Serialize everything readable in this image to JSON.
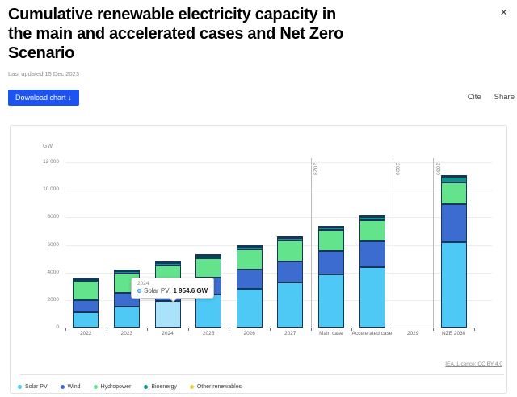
{
  "header": {
    "title_lines": [
      "Cumulative renewable electricity capacity in",
      "the main and accelerated cases and Net Zero",
      "Scenario"
    ],
    "last_updated": "Last updated 15 Dec 2023",
    "download_label": "Download chart ↓",
    "cite_label": "Cite",
    "share_label": "Share",
    "close_icon": "×"
  },
  "colors": {
    "accent_blue": "#1d53f2",
    "bar_border": "#16365c",
    "grid": "#ededed",
    "axis": "#555555"
  },
  "chart_data": {
    "type": "bar",
    "stacked": true,
    "title": "Cumulative renewable electricity capacity in the main and accelerated cases and Net Zero Scenario",
    "ylabel": "GW",
    "ylim": [
      0,
      12000
    ],
    "grid": true,
    "legend_position": "bottom",
    "yticks": [
      "0",
      "2000",
      "4000",
      "6000",
      "8000",
      "10 000",
      "12 000"
    ],
    "categories": [
      "2022",
      "2023",
      "2024",
      "2025",
      "2026",
      "2027",
      "Main case",
      "Accelerated case",
      "2029",
      "NZE 2030"
    ],
    "series": [
      {
        "name": "Solar PV",
        "color": "#4ec9f5",
        "highlight_color": "#a9e2f9",
        "values": [
          1120,
          1550,
          1954.6,
          2450,
          2830,
          3300,
          3900,
          4430,
          0,
          6180
        ]
      },
      {
        "name": "Wind",
        "color": "#3d6cd0",
        "values": [
          930,
          1050,
          1230,
          1250,
          1470,
          1600,
          1750,
          1900,
          0,
          2750
        ]
      },
      {
        "name": "Hydropower",
        "color": "#63e38c",
        "values": [
          1430,
          1440,
          1450,
          1460,
          1480,
          1500,
          1510,
          1560,
          0,
          1620
        ]
      },
      {
        "name": "Bioenergy",
        "color": "#0f9489",
        "values": [
          155,
          160,
          165,
          170,
          180,
          190,
          200,
          215,
          0,
          380
        ]
      },
      {
        "name": "Other renewables",
        "color": "#e8d23d",
        "values": [
          15,
          16,
          17,
          18,
          19,
          20,
          21,
          22,
          0,
          160
        ]
      }
    ],
    "separators": [
      {
        "label": "2028",
        "boundary_index": 6
      },
      {
        "label": "2029",
        "boundary_index": 8
      },
      {
        "label": "2030",
        "boundary_index": 9
      }
    ],
    "highlight": {
      "category": "2024",
      "series": "Solar PV"
    }
  },
  "tooltip": {
    "category": "2024",
    "series_label": "Solar PV:",
    "value": "1 954.6 GW"
  },
  "footer": {
    "licence": "IEA. Licence: CC BY 4.0"
  }
}
